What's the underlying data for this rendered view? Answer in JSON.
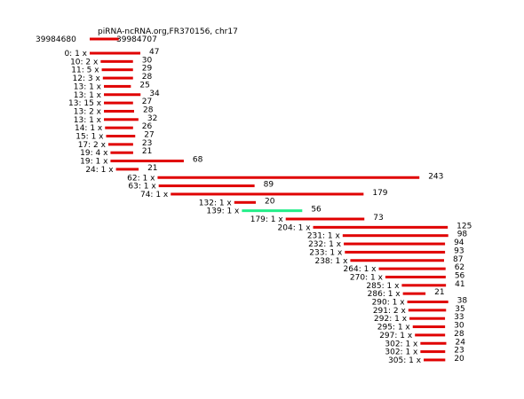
{
  "title": "piRNA-ncRNA.org,FR370156, chr17",
  "range": {
    "start": "39984680",
    "end": "39984707"
  },
  "colors": {
    "read": "#e00000",
    "highlight": "#22ee88",
    "text": "#000000"
  },
  "reads": [
    {
      "label": "0: 1 x",
      "start": 0,
      "length": 47
    },
    {
      "label": "10: 2 x",
      "start": 10,
      "length": 30
    },
    {
      "label": "11: 5 x",
      "start": 11,
      "length": 29
    },
    {
      "label": "12: 3 x",
      "start": 12,
      "length": 28
    },
    {
      "label": "13: 1 x",
      "start": 13,
      "length": 25
    },
    {
      "label": "13: 1 x",
      "start": 13,
      "length": 34
    },
    {
      "label": "13: 15 x",
      "start": 13,
      "length": 27
    },
    {
      "label": "13: 2 x",
      "start": 13,
      "length": 28
    },
    {
      "label": "13: 1 x",
      "start": 13,
      "length": 32
    },
    {
      "label": "14: 1 x",
      "start": 14,
      "length": 26
    },
    {
      "label": "15: 1 x",
      "start": 15,
      "length": 27
    },
    {
      "label": "17: 2 x",
      "start": 17,
      "length": 23
    },
    {
      "label": "19: 4 x",
      "start": 19,
      "length": 21
    },
    {
      "label": "19: 1 x",
      "start": 19,
      "length": 68
    },
    {
      "label": "24: 1 x",
      "start": 24,
      "length": 21
    },
    {
      "label": "62: 1 x",
      "start": 62,
      "length": 243
    },
    {
      "label": "63: 1 x",
      "start": 63,
      "length": 89
    },
    {
      "label": "74: 1 x",
      "start": 74,
      "length": 179
    },
    {
      "label": "132: 1 x",
      "start": 132,
      "length": 20
    },
    {
      "label": "139: 1 x",
      "start": 139,
      "length": 56,
      "highlight": true
    },
    {
      "label": "179: 1 x",
      "start": 179,
      "length": 73
    },
    {
      "label": "204: 1 x",
      "start": 204,
      "length": 125
    },
    {
      "label": "231: 1 x",
      "start": 231,
      "length": 98
    },
    {
      "label": "232: 1 x",
      "start": 232,
      "length": 94
    },
    {
      "label": "233: 1 x",
      "start": 233,
      "length": 93
    },
    {
      "label": "238: 1 x",
      "start": 238,
      "length": 87
    },
    {
      "label": "264: 1 x",
      "start": 264,
      "length": 62
    },
    {
      "label": "270: 1 x",
      "start": 270,
      "length": 56
    },
    {
      "label": "285: 1 x",
      "start": 285,
      "length": 41
    },
    {
      "label": "286: 1 x",
      "start": 286,
      "length": 21
    },
    {
      "label": "290: 1 x",
      "start": 290,
      "length": 38
    },
    {
      "label": "291: 2 x",
      "start": 291,
      "length": 35
    },
    {
      "label": "292: 1 x",
      "start": 292,
      "length": 33
    },
    {
      "label": "295: 1 x",
      "start": 295,
      "length": 30
    },
    {
      "label": "297: 1 x",
      "start": 297,
      "length": 28
    },
    {
      "label": "302: 1 x",
      "start": 302,
      "length": 24
    },
    {
      "label": "302: 1 x",
      "start": 302,
      "length": 23
    },
    {
      "label": "305: 1 x",
      "start": 305,
      "length": 20
    }
  ]
}
